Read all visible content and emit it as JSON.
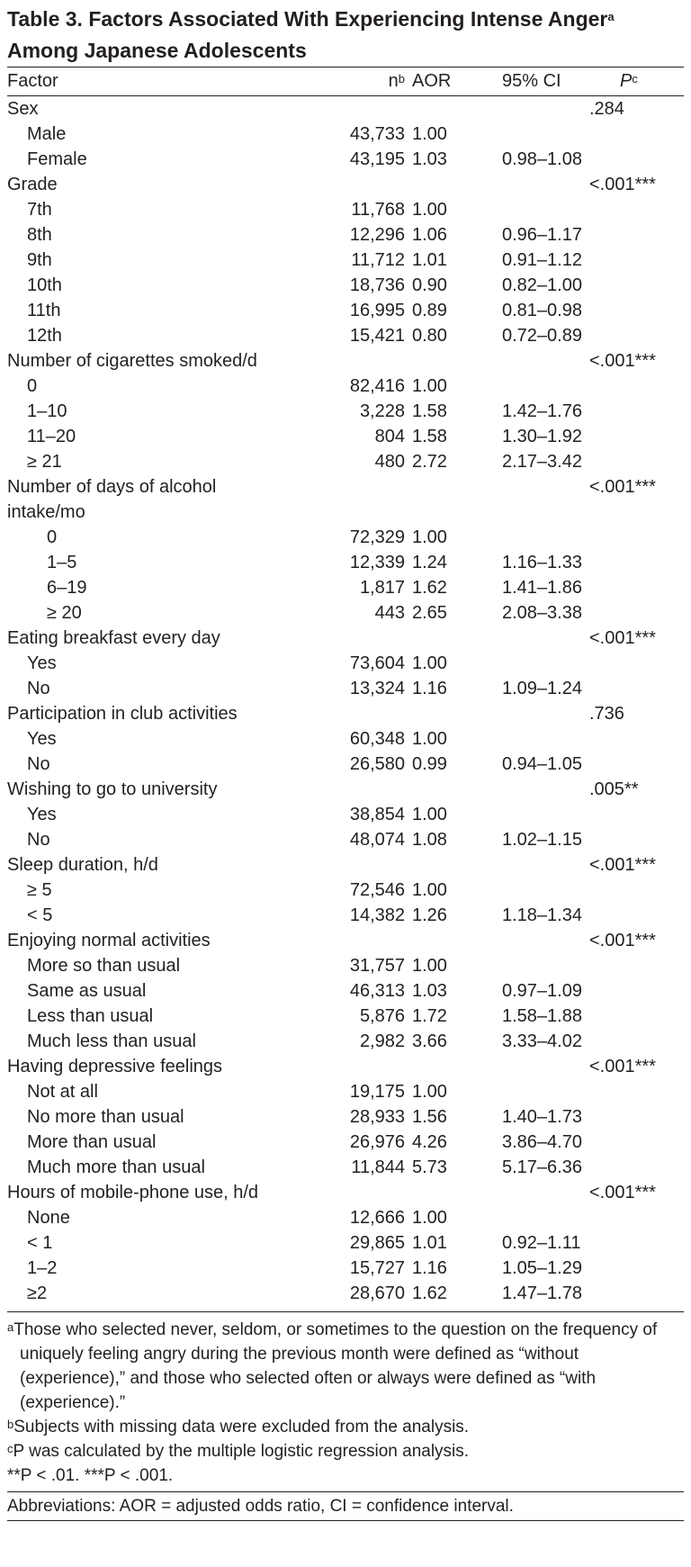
{
  "title": {
    "text": "Table 3. Factors Associated With Experiencing Intense Anger",
    "sup": "a",
    "text2": "Among Japanese Adolescents"
  },
  "table": {
    "header": {
      "factor": "Factor",
      "n": "n",
      "n_sup": "b",
      "aor": "AOR",
      "ci": "95% CI",
      "p": "P",
      "p_sup": "c"
    },
    "groups": [
      {
        "label": "Sex",
        "p": ".284",
        "items": [
          {
            "label": "Male",
            "n": "43,733",
            "aor": "1.00"
          },
          {
            "label": "Female",
            "n": "43,195",
            "aor": "1.03",
            "ci": "0.98–1.08"
          }
        ]
      },
      {
        "label": "Grade",
        "p": "<.001",
        "sig": "***",
        "items": [
          {
            "label": "7th",
            "n": "11,768",
            "aor": "1.00"
          },
          {
            "label": "8th",
            "n": "12,296",
            "aor": "1.06",
            "ci": "0.96–1.17"
          },
          {
            "label": "9th",
            "n": "11,712",
            "aor": "1.01",
            "ci": "0.91–1.12"
          },
          {
            "label": "10th",
            "n": "18,736",
            "aor": "0.90",
            "ci": "0.82–1.00"
          },
          {
            "label": "11th",
            "n": "16,995",
            "aor": "0.89",
            "ci": "0.81–0.98"
          },
          {
            "label": "12th",
            "n": "15,421",
            "aor": "0.80",
            "ci": "0.72–0.89"
          }
        ]
      },
      {
        "label": "Number of cigarettes smoked/d",
        "p": "<.001",
        "sig": "***",
        "items": [
          {
            "label": "0",
            "n": "82,416",
            "aor": "1.00"
          },
          {
            "label": "1–10",
            "n": "3,228",
            "aor": "1.58",
            "ci": "1.42–1.76"
          },
          {
            "label": "11–20",
            "n": "804",
            "aor": "1.58",
            "ci": "1.30–1.92"
          },
          {
            "label": "≥ 21",
            "n": "480",
            "aor": "2.72",
            "ci": "2.17–3.42"
          }
        ]
      },
      {
        "label": "Number of days of alcohol intake/mo",
        "p": "<.001",
        "sig": "***",
        "items": [
          {
            "label": "0",
            "n": "72,329",
            "aor": "1.00"
          },
          {
            "label": "1–5",
            "n": "12,339",
            "aor": "1.24",
            "ci": "1.16–1.33"
          },
          {
            "label": "6–19",
            "n": "1,817",
            "aor": "1.62",
            "ci": "1.41–1.86"
          },
          {
            "label": "≥ 20",
            "n": "443",
            "aor": "2.65",
            "ci": "2.08–3.38"
          }
        ]
      },
      {
        "label": "Eating breakfast every day",
        "p": "<.001",
        "sig": "***",
        "items": [
          {
            "label": "Yes",
            "n": "73,604",
            "aor": "1.00"
          },
          {
            "label": "No",
            "n": "13,324",
            "aor": "1.16",
            "ci": "1.09–1.24"
          }
        ]
      },
      {
        "label": "Participation in club activities",
        "p": ".736",
        "items": [
          {
            "label": "Yes",
            "n": "60,348",
            "aor": "1.00"
          },
          {
            "label": "No",
            "n": "26,580",
            "aor": "0.99",
            "ci": "0.94–1.05"
          }
        ]
      },
      {
        "label": "Wishing to go to university",
        "p": ".005",
        "sig": "**",
        "items": [
          {
            "label": "Yes",
            "n": "38,854",
            "aor": "1.00"
          },
          {
            "label": "No",
            "n": "48,074",
            "aor": "1.08",
            "ci": "1.02–1.15"
          }
        ]
      },
      {
        "label": "Sleep duration, h/d",
        "p": "<.001",
        "sig": "***",
        "items": [
          {
            "label": "≥ 5",
            "n": "72,546",
            "aor": "1.00"
          },
          {
            "label": "< 5",
            "n": "14,382",
            "aor": "1.26",
            "ci": "1.18–1.34"
          }
        ]
      },
      {
        "label": "Enjoying normal activities",
        "p": "<.001",
        "sig": "***",
        "items": [
          {
            "label": "More so than usual",
            "n": "31,757",
            "aor": "1.00"
          },
          {
            "label": "Same as usual",
            "n": "46,313",
            "aor": "1.03",
            "ci": "0.97–1.09"
          },
          {
            "label": "Less than usual",
            "n": "5,876",
            "aor": "1.72",
            "ci": "1.58–1.88"
          },
          {
            "label": "Much less than usual",
            "n": "2,982",
            "aor": "3.66",
            "ci": "3.33–4.02"
          }
        ]
      },
      {
        "label": "Having depressive feelings",
        "p": "<.001",
        "sig": "***",
        "items": [
          {
            "label": "Not at all",
            "n": "19,175",
            "aor": "1.00"
          },
          {
            "label": "No more than usual",
            "n": "28,933",
            "aor": "1.56",
            "ci": "1.40–1.73"
          },
          {
            "label": "More than usual",
            "n": "26,976",
            "aor": "4.26",
            "ci": "3.86–4.70"
          },
          {
            "label": "Much more than usual",
            "n": "11,844",
            "aor": "5.73",
            "ci": "5.17–6.36"
          }
        ]
      },
      {
        "label": "Hours of mobile-phone use, h/d",
        "p": "<.001",
        "sig": "***",
        "items": [
          {
            "label": "None",
            "n": "12,666",
            "aor": "1.00"
          },
          {
            "label": "< 1",
            "n": "29,865",
            "aor": "1.01",
            "ci": "0.92–1.11"
          },
          {
            "label": "1–2",
            "n": "15,727",
            "aor": "1.16",
            "ci": "1.05–1.29"
          },
          {
            "label": "≥2",
            "n": "28,670",
            "aor": "1.62",
            "ci": "1.47–1.78"
          }
        ]
      }
    ]
  },
  "footnotes": [
    {
      "mark": "a",
      "text": "Those who selected never, seldom, or sometimes to the question on the frequency of uniquely feeling angry during the previous month were defined as “without (experience),” and those who selected often or always were defined as “with (experience).”"
    },
    {
      "mark": "b",
      "text": "Subjects with missing data were excluded from the analysis."
    },
    {
      "mark": "c",
      "text": "P was calculated by the multiple logistic regression analysis."
    },
    {
      "text": "**P < .01.  ***P < .001."
    },
    {
      "text": "Abbreviations: AOR = adjusted odds ratio, CI = confidence interval."
    }
  ]
}
